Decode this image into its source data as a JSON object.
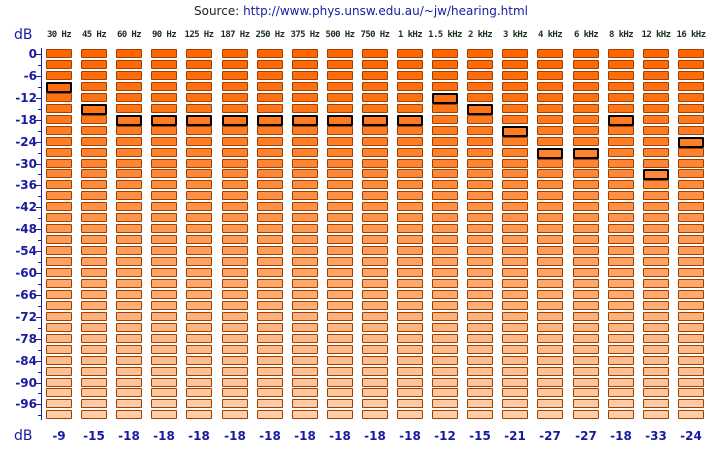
{
  "source": {
    "prefix": "Source: ",
    "link_text": "http://www.phys.unsw.edu.au/~jw/hearing.html"
  },
  "axis": {
    "unit_top": "dB",
    "unit_bottom": "dB",
    "tick_labels": [
      "0",
      "-6",
      "-12",
      "-18",
      "-24",
      "-30",
      "-36",
      "-42",
      "-48",
      "-54",
      "-60",
      "-66",
      "-72",
      "-78",
      "-84",
      "-90",
      "-96"
    ]
  },
  "frequencies": [
    "30 Hz",
    "45 Hz",
    "60 Hz",
    "90 Hz",
    "125 Hz",
    "187 Hz",
    "250 Hz",
    "375 Hz",
    "500 Hz",
    "750 Hz",
    "1 kHz",
    "1.5 kHz",
    "2 kHz",
    "3 kHz",
    "4 kHz",
    "6 kHz",
    "8 kHz",
    "12 kHz",
    "16 kHz"
  ],
  "results": [
    "-9",
    "-15",
    "-18",
    "-18",
    "-18",
    "-18",
    "-18",
    "-18",
    "-18",
    "-18",
    "-18",
    "-12",
    "-15",
    "-21",
    "-27",
    "-27",
    "-18",
    "-33",
    "-24"
  ],
  "levels_per_column": 34,
  "db_step": 3,
  "colors": {
    "cell_top": "#ff6600",
    "cell_bottom": "#ffcda8",
    "accent": "#1a1aa0",
    "freq_text": "#1c2f1c"
  }
}
